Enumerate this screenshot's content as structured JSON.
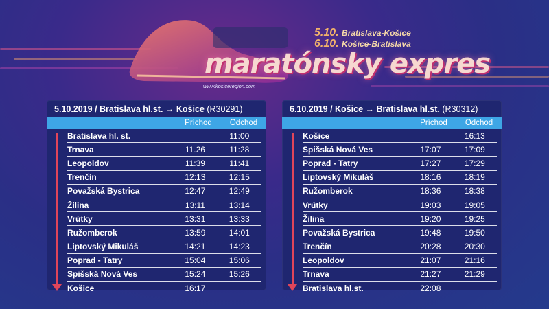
{
  "header": {
    "brand": "maratónsky expres",
    "website": "www.kosiceregion.com",
    "dates": [
      {
        "date": "5.10.",
        "route": "Bratislava-Košice"
      },
      {
        "date": "6.10.",
        "route": "Košice-Bratislava"
      }
    ]
  },
  "colors": {
    "panel_bg": "#1f2670",
    "header_row": "#3ea6e6",
    "arrow": "#e0455a",
    "brand_text": "#f6d8d0"
  },
  "tables": [
    {
      "title": "5.10.2019 / Bratislava hl.st. → Košice",
      "code": "(R30291)",
      "col_arrival": "Príchod",
      "col_departure": "Odchod",
      "rows": [
        {
          "station": "Bratislava hl. st.",
          "arr": "",
          "dep": "11:00"
        },
        {
          "station": "Trnava",
          "arr": "11.26",
          "dep": "11:28"
        },
        {
          "station": "Leopoldov",
          "arr": "11:39",
          "dep": "11:41"
        },
        {
          "station": "Trenčín",
          "arr": "12:13",
          "dep": "12:15"
        },
        {
          "station": "Považská Bystrica",
          "arr": "12:47",
          "dep": "12:49"
        },
        {
          "station": "Žilina",
          "arr": "13:11",
          "dep": "13:14"
        },
        {
          "station": "Vrútky",
          "arr": "13:31",
          "dep": "13:33"
        },
        {
          "station": "Ružomberok",
          "arr": "13:59",
          "dep": "14:01"
        },
        {
          "station": "Liptovský Mikuláš",
          "arr": "14:21",
          "dep": "14:23"
        },
        {
          "station": "Poprad - Tatry",
          "arr": "15:04",
          "dep": "15:06"
        },
        {
          "station": "Spišská Nová Ves",
          "arr": "15:24",
          "dep": "15:26"
        },
        {
          "station": "Košice",
          "arr": "16:17",
          "dep": ""
        }
      ]
    },
    {
      "title": "6.10.2019 / Košice → Bratislava hl.st.",
      "code": "(R30312)",
      "col_arrival": "Príchod",
      "col_departure": "Odchod",
      "rows": [
        {
          "station": "Košice",
          "arr": "",
          "dep": "16:13"
        },
        {
          "station": "Spišská Nová Ves",
          "arr": "17:07",
          "dep": "17:09"
        },
        {
          "station": "Poprad - Tatry",
          "arr": "17:27",
          "dep": "17:29"
        },
        {
          "station": "Liptovský Mikuláš",
          "arr": "18:16",
          "dep": "18:19"
        },
        {
          "station": "Ružomberok",
          "arr": "18:36",
          "dep": "18:38"
        },
        {
          "station": "Vrútky",
          "arr": "19:03",
          "dep": "19:05"
        },
        {
          "station": "Žilina",
          "arr": "19:20",
          "dep": "19:25"
        },
        {
          "station": "Považská Bystrica",
          "arr": "19:48",
          "dep": "19:50"
        },
        {
          "station": "Trenčín",
          "arr": "20:28",
          "dep": "20:30"
        },
        {
          "station": "Leopoldov",
          "arr": "21:07",
          "dep": "21:16"
        },
        {
          "station": "Trnava",
          "arr": "21:27",
          "dep": "21:29"
        },
        {
          "station": "Bratislava hl.st.",
          "arr": "22:08",
          "dep": ""
        }
      ]
    }
  ]
}
